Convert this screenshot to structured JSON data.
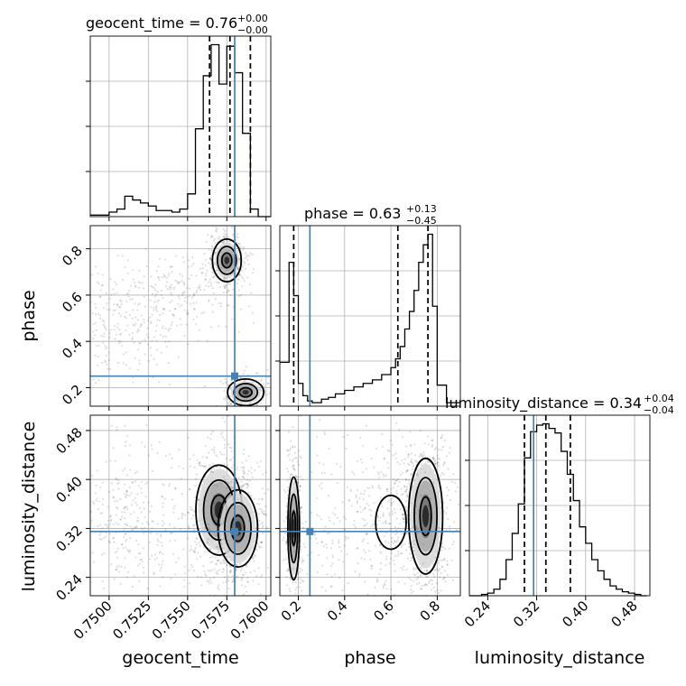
{
  "chart_data": {
    "type": "scatter",
    "subtype": "corner-plot",
    "colors": {
      "truth": "#4682b4",
      "lines": "#000000",
      "grid": "#b0b0b0"
    },
    "truths": {
      "geocent_time": 0.758,
      "phase": 0.25,
      "luminosity_distance": 0.315
    },
    "titles": {
      "geocent_time": {
        "text": "geocent_time = 0.76",
        "up": "+0.00",
        "down": "−0.00"
      },
      "phase": {
        "text": "phase = 0.63",
        "up": "+0.13",
        "down": "−0.45"
      },
      "luminosity_distance": {
        "text": "luminosity_distance = 0.34",
        "up": "+0.04",
        "down": "−0.04"
      }
    },
    "axis_labels": {
      "geocent_time": "geocent_time",
      "phase": "phase",
      "luminosity_distance": "luminosity_distance"
    },
    "ranges": {
      "geocent_time": [
        0.7488,
        0.7603
      ],
      "phase": [
        0.12,
        0.9
      ],
      "luminosity_distance": [
        0.21,
        0.505
      ]
    },
    "ticks": {
      "geocent_time": [
        {
          "v": 0.75,
          "label": "0.7500"
        },
        {
          "v": 0.7525,
          "label": "0.7525"
        },
        {
          "v": 0.755,
          "label": "0.7550"
        },
        {
          "v": 0.7575,
          "label": "0.7575"
        },
        {
          "v": 0.76,
          "label": "0.7600"
        }
      ],
      "phase": [
        {
          "v": 0.2,
          "label": "0.2"
        },
        {
          "v": 0.4,
          "label": "0.4"
        },
        {
          "v": 0.6,
          "label": "0.6"
        },
        {
          "v": 0.8,
          "label": "0.8"
        }
      ],
      "luminosity_distance": [
        {
          "v": 0.24,
          "label": "0.24"
        },
        {
          "v": 0.32,
          "label": "0.32"
        },
        {
          "v": 0.4,
          "label": "0.40"
        },
        {
          "v": 0.48,
          "label": "0.48"
        }
      ]
    },
    "quantiles": {
      "geocent_time": [
        0.7564,
        0.7577,
        0.759
      ],
      "phase": [
        0.18,
        0.63,
        0.76
      ],
      "luminosity_distance": [
        0.3,
        0.335,
        0.375
      ]
    },
    "histograms": {
      "geocent_time": {
        "edges": [
          0.7488,
          0.75,
          0.7505,
          0.751,
          0.7515,
          0.752,
          0.7525,
          0.753,
          0.7535,
          0.754,
          0.7545,
          0.755,
          0.7555,
          0.756,
          0.7565,
          0.757,
          0.7575,
          0.758,
          0.7585,
          0.759,
          0.7595,
          0.7603
        ],
        "counts": [
          2,
          6,
          10,
          27,
          22,
          18,
          14,
          8,
          8,
          6,
          10,
          30,
          116,
          186,
          227,
          175,
          225,
          190,
          110,
          10,
          0
        ]
      },
      "phase": {
        "edges": [
          0.12,
          0.16,
          0.18,
          0.2,
          0.22,
          0.24,
          0.26,
          0.28,
          0.3,
          0.33,
          0.36,
          0.4,
          0.44,
          0.48,
          0.52,
          0.56,
          0.6,
          0.62,
          0.64,
          0.66,
          0.68,
          0.7,
          0.72,
          0.74,
          0.76,
          0.78,
          0.8,
          0.84,
          0.9
        ],
        "counts": [
          25,
          82,
          63,
          13,
          6,
          3,
          2,
          2,
          4,
          5,
          7,
          9,
          11,
          13,
          15,
          18,
          22,
          27,
          34,
          44,
          54,
          66,
          82,
          92,
          98,
          57,
          12,
          2
        ]
      },
      "luminosity_distance": {
        "edges": [
          0.21,
          0.22,
          0.23,
          0.24,
          0.25,
          0.26,
          0.27,
          0.28,
          0.29,
          0.3,
          0.31,
          0.32,
          0.33,
          0.34,
          0.35,
          0.36,
          0.37,
          0.38,
          0.39,
          0.4,
          0.41,
          0.42,
          0.43,
          0.44,
          0.45,
          0.46,
          0.47,
          0.48,
          0.49,
          0.5
        ],
        "counts": [
          0,
          0,
          2,
          4,
          10,
          25,
          55,
          95,
          140,
          210,
          250,
          260,
          262,
          255,
          248,
          220,
          185,
          145,
          105,
          80,
          55,
          38,
          25,
          15,
          10,
          6,
          4,
          2,
          0
        ]
      }
    },
    "density_clusters": {
      "phase_vs_geocent": [
        {
          "x": 0.7575,
          "y": 0.75,
          "sx": 0.0004,
          "sy": 0.04,
          "n": 420,
          "levels": [
            0.8,
            1.5,
            2.3
          ],
          "peak": true
        },
        {
          "x": 0.7587,
          "y": 0.18,
          "sx": 0.0005,
          "sy": 0.025,
          "n": 260,
          "levels": [
            0.8,
            1.5,
            2.3
          ],
          "peak": true
        },
        {
          "x": 0.7505,
          "y": 0.45,
          "sx": 0.0015,
          "sy": 0.08,
          "n": 260,
          "levels": [],
          "peak": false
        },
        {
          "x": 0.7545,
          "y": 0.62,
          "sx": 0.0015,
          "sy": 0.05,
          "n": 200,
          "levels": [],
          "peak": false
        }
      ],
      "distance_vs_geocent": [
        {
          "x": 0.757,
          "y": 0.35,
          "sx": 0.0007,
          "sy": 0.035,
          "n": 600,
          "levels": [
            0.7,
            1.4,
            2.1
          ],
          "peak": true
        },
        {
          "x": 0.7582,
          "y": 0.32,
          "sx": 0.0006,
          "sy": 0.03,
          "n": 500,
          "levels": [
            0.7,
            1.4,
            2.1
          ],
          "peak": true
        },
        {
          "x": 0.7515,
          "y": 0.33,
          "sx": 0.0013,
          "sy": 0.045,
          "n": 350,
          "levels": [],
          "peak": false
        }
      ],
      "distance_vs_phase": [
        {
          "x": 0.75,
          "y": 0.34,
          "sx": 0.035,
          "sy": 0.045,
          "n": 650,
          "levels": [
            0.7,
            1.4,
            2.1
          ],
          "peak": true
        },
        {
          "x": 0.18,
          "y": 0.32,
          "sx": 0.012,
          "sy": 0.04,
          "n": 380,
          "levels": [
            0.7,
            1.4,
            2.1
          ],
          "peak": true
        },
        {
          "x": 0.6,
          "y": 0.33,
          "sx": 0.06,
          "sy": 0.04,
          "n": 250,
          "levels": [
            1.1
          ],
          "peak": false
        },
        {
          "x": 0.4,
          "y": 0.32,
          "sx": 0.09,
          "sy": 0.06,
          "n": 200,
          "levels": [],
          "peak": false
        }
      ]
    }
  }
}
